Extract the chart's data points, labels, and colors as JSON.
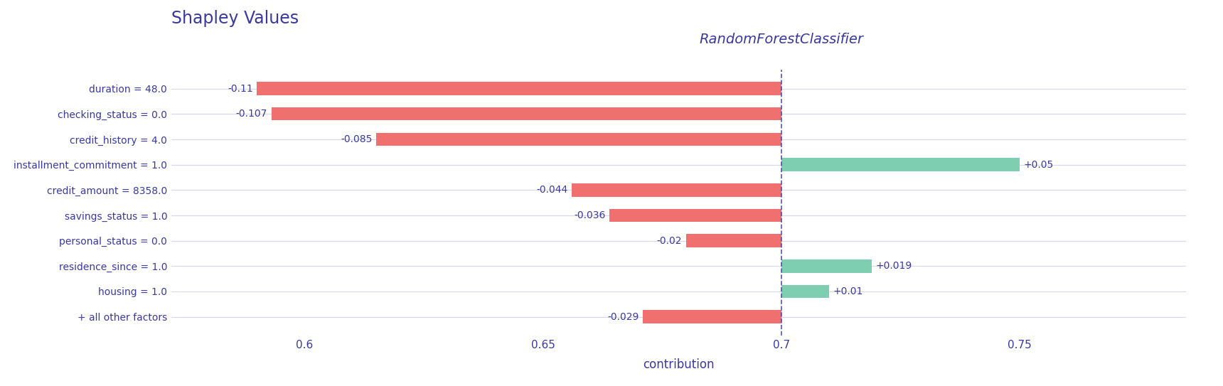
{
  "title": "Shapley Values",
  "classifier_label": "RandomForestClassifier",
  "xlabel": "contribution",
  "base_value": 0.7,
  "xlim": [
    0.572,
    0.785
  ],
  "xticks": [
    0.6,
    0.65,
    0.7,
    0.75
  ],
  "features": [
    "duration = 48.0",
    "checking_status = 0.0",
    "credit_history = 4.0",
    "installment_commitment = 1.0",
    "credit_amount = 8358.0",
    "savings_status = 1.0",
    "personal_status = 0.0",
    "residence_since = 1.0",
    "housing = 1.0",
    "+ all other factors"
  ],
  "shap_values": [
    -0.11,
    -0.107,
    -0.085,
    0.05,
    -0.044,
    -0.036,
    -0.02,
    0.019,
    0.01,
    -0.029
  ],
  "bar_labels": [
    "-0.11",
    "-0.107",
    "-0.085",
    "+0.05",
    "-0.044",
    "-0.036",
    "-0.02",
    "+0.019",
    "+0.01",
    "-0.029"
  ],
  "neg_color": "#f07070",
  "pos_color": "#7ecfb2",
  "title_color": "#3939a0",
  "label_color": "#3939a0",
  "grid_color": "#d8d8e8",
  "dashed_line_color": "#3939a0",
  "background_color": "#ffffff",
  "title_fontsize": 17,
  "label_fontsize": 10,
  "tick_fontsize": 11,
  "classifier_fontsize": 14,
  "bar_height": 0.52
}
